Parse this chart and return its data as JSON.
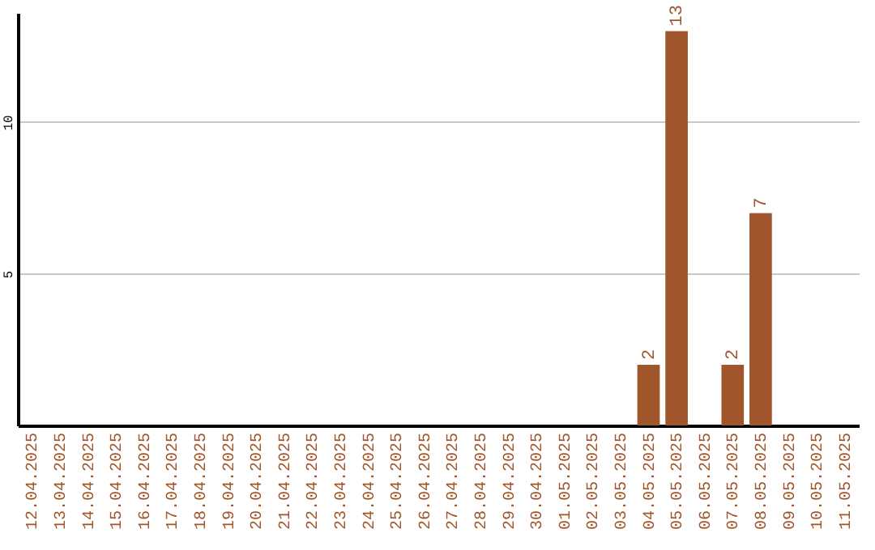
{
  "chart_data": {
    "type": "bar",
    "categories": [
      "12.04.2025",
      "13.04.2025",
      "14.04.2025",
      "15.04.2025",
      "16.04.2025",
      "17.04.2025",
      "18.04.2025",
      "19.04.2025",
      "20.04.2025",
      "21.04.2025",
      "22.04.2025",
      "23.04.2025",
      "24.04.2025",
      "25.04.2025",
      "26.04.2025",
      "27.04.2025",
      "28.04.2025",
      "29.04.2025",
      "30.04.2025",
      "01.05.2025",
      "02.05.2025",
      "03.05.2025",
      "04.05.2025",
      "05.05.2025",
      "06.05.2025",
      "07.05.2025",
      "08.05.2025",
      "09.05.2025",
      "10.05.2025",
      "11.05.2025"
    ],
    "values": [
      0,
      0,
      0,
      0,
      0,
      0,
      0,
      0,
      0,
      0,
      0,
      0,
      0,
      0,
      0,
      0,
      0,
      0,
      0,
      0,
      0,
      0,
      2,
      13,
      0,
      2,
      7,
      0,
      0,
      0
    ],
    "value_labels": [
      null,
      null,
      null,
      null,
      null,
      null,
      null,
      null,
      null,
      null,
      null,
      null,
      null,
      null,
      null,
      null,
      null,
      null,
      null,
      null,
      null,
      null,
      "2",
      "13",
      null,
      "2",
      "7",
      null,
      null,
      null
    ],
    "color": "#a0562a",
    "ylim": [
      0,
      13.6
    ],
    "yticks": [
      5,
      10
    ],
    "grid": "y"
  }
}
